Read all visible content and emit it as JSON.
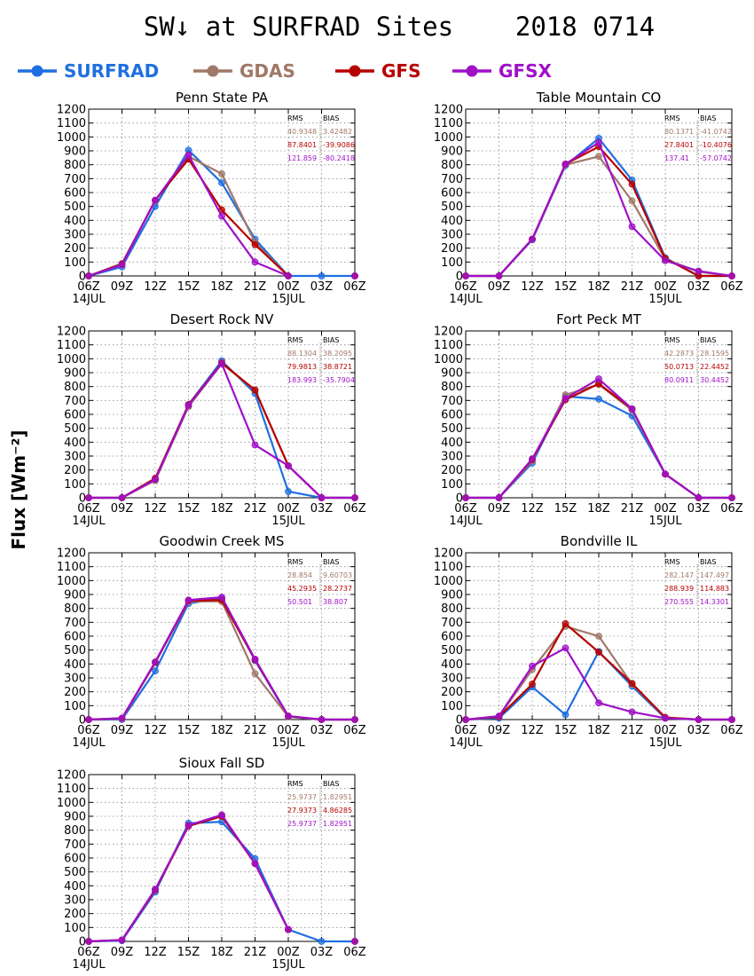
{
  "title": "SW↓ at SURFRAD Sites    2018 0714",
  "ylabel": "Flux [Wm⁻²]",
  "stats_headers": [
    "RMS",
    "BIAS"
  ],
  "x_ticks": [
    "06Z",
    "09Z",
    "12Z",
    "15Z",
    "18Z",
    "21Z",
    "00Z",
    "03Z",
    "06Z"
  ],
  "date_labels": [
    "14JUL",
    "15JUL"
  ],
  "legend": [
    {
      "name": "SURFRAD",
      "color": "#1f6fe0"
    },
    {
      "name": "GDAS",
      "color": "#a07868"
    },
    {
      "name": "GFS",
      "color": "#b80000"
    },
    {
      "name": "GFSX",
      "color": "#a010c8"
    }
  ],
  "chart_data": [
    {
      "type": "line",
      "title": "Penn State PA",
      "ylim": [
        0,
        1200
      ],
      "categories": [
        "06Z",
        "09Z",
        "12Z",
        "15Z",
        "18Z",
        "21Z",
        "00Z",
        "03Z",
        "06Z"
      ],
      "series": [
        {
          "name": "SURFRAD",
          "values": [
            0,
            65,
            500,
            905,
            670,
            265,
            0,
            0,
            0
          ]
        },
        {
          "name": "GDAS",
          "values": [
            0,
            90,
            540,
            860,
            735,
            240,
            0,
            null,
            0
          ]
        },
        {
          "name": "GFS",
          "values": [
            0,
            85,
            545,
            840,
            475,
            225,
            0,
            null,
            0
          ]
        },
        {
          "name": "GFSX",
          "values": [
            0,
            80,
            545,
            870,
            430,
            100,
            0,
            null,
            0
          ]
        }
      ],
      "stats": [
        {
          "rms": "40.9348",
          "bias": "3.42482"
        },
        {
          "rms": "87.8401",
          "bias": "-39.9086"
        },
        {
          "rms": "121.859",
          "bias": "-80.2418"
        }
      ]
    },
    {
      "type": "line",
      "title": "Table Mountain CO",
      "ylim": [
        0,
        1200
      ],
      "categories": [
        "06Z",
        "09Z",
        "12Z",
        "15Z",
        "18Z",
        "21Z",
        "00Z",
        "03Z",
        "06Z"
      ],
      "series": [
        {
          "name": "SURFRAD",
          "values": [
            0,
            0,
            260,
            795,
            990,
            690,
            130,
            0,
            0
          ]
        },
        {
          "name": "GDAS",
          "values": [
            0,
            0,
            265,
            800,
            860,
            540,
            120,
            30,
            0
          ]
        },
        {
          "name": "GFS",
          "values": [
            0,
            0,
            265,
            805,
            930,
            660,
            125,
            0,
            0
          ]
        },
        {
          "name": "GFSX",
          "values": [
            0,
            0,
            265,
            805,
            960,
            355,
            110,
            35,
            0
          ]
        }
      ],
      "stats": [
        {
          "rms": "80.1371",
          "bias": "-41.0742"
        },
        {
          "rms": "27.8401",
          "bias": "-10.4076"
        },
        {
          "rms": "137.41",
          "bias": "-57.0742"
        }
      ]
    },
    {
      "type": "line",
      "title": "Desert Rock NV",
      "ylim": [
        0,
        1200
      ],
      "categories": [
        "06Z",
        "09Z",
        "12Z",
        "15Z",
        "18Z",
        "21Z",
        "00Z",
        "03Z",
        "06Z"
      ],
      "series": [
        {
          "name": "SURFRAD",
          "values": [
            0,
            0,
            135,
            670,
            985,
            750,
            45,
            0,
            0
          ]
        },
        {
          "name": "GDAS",
          "values": [
            0,
            0,
            125,
            655,
            965,
            775,
            230,
            0,
            0
          ]
        },
        {
          "name": "GFS",
          "values": [
            0,
            0,
            140,
            670,
            970,
            775,
            230,
            0,
            0
          ]
        },
        {
          "name": "GFSX",
          "values": [
            0,
            0,
            130,
            665,
            965,
            380,
            230,
            0,
            0
          ]
        }
      ],
      "stats": [
        {
          "rms": "88.1304",
          "bias": "38.2095"
        },
        {
          "rms": "79.9813",
          "bias": "38.8721"
        },
        {
          "rms": "183.993",
          "bias": "-35.7904"
        }
      ]
    },
    {
      "type": "line",
      "title": "Fort Peck MT",
      "ylim": [
        0,
        1200
      ],
      "categories": [
        "06Z",
        "09Z",
        "12Z",
        "15Z",
        "18Z",
        "21Z",
        "00Z",
        "03Z",
        "06Z"
      ],
      "series": [
        {
          "name": "SURFRAD",
          "values": [
            0,
            0,
            250,
            730,
            710,
            590,
            170,
            0,
            0
          ]
        },
        {
          "name": "GDAS",
          "values": [
            0,
            0,
            265,
            740,
            815,
            630,
            170,
            0,
            0
          ]
        },
        {
          "name": "GFS",
          "values": [
            0,
            0,
            275,
            705,
            820,
            640,
            170,
            0,
            0
          ]
        },
        {
          "name": "GFSX",
          "values": [
            0,
            0,
            280,
            715,
            855,
            640,
            170,
            0,
            0
          ]
        }
      ],
      "stats": [
        {
          "rms": "42.2873",
          "bias": "28.1595"
        },
        {
          "rms": "50.0713",
          "bias": "22.4452"
        },
        {
          "rms": "80.0911",
          "bias": "30.4452"
        }
      ]
    },
    {
      "type": "line",
      "title": "Goodwin Creek MS",
      "ylim": [
        0,
        1200
      ],
      "categories": [
        "06Z",
        "09Z",
        "12Z",
        "15Z",
        "18Z",
        "21Z",
        "00Z",
        "03Z",
        "06Z"
      ],
      "series": [
        {
          "name": "SURFRAD",
          "values": [
            0,
            0,
            350,
            835,
            875,
            425,
            20,
            0,
            0
          ]
        },
        {
          "name": "GDAS",
          "values": [
            0,
            5,
            410,
            850,
            850,
            330,
            20,
            0,
            0
          ]
        },
        {
          "name": "GFS",
          "values": [
            0,
            10,
            410,
            855,
            860,
            430,
            25,
            0,
            0
          ]
        },
        {
          "name": "GFSX",
          "values": [
            0,
            10,
            415,
            860,
            880,
            435,
            25,
            0,
            0
          ]
        }
      ],
      "stats": [
        {
          "rms": "28.854",
          "bias": "9.60703"
        },
        {
          "rms": "45.2935",
          "bias": "28.2737"
        },
        {
          "rms": "50.501",
          "bias": "38.807"
        }
      ]
    },
    {
      "type": "line",
      "title": "Bondville IL",
      "ylim": [
        0,
        1200
      ],
      "categories": [
        "06Z",
        "09Z",
        "12Z",
        "15Z",
        "18Z",
        "21Z",
        "00Z",
        "03Z",
        "06Z"
      ],
      "series": [
        {
          "name": "SURFRAD",
          "values": [
            0,
            10,
            235,
            35,
            490,
            240,
            10,
            0,
            0
          ]
        },
        {
          "name": "GDAS",
          "values": [
            0,
            20,
            360,
            670,
            600,
            255,
            15,
            0,
            0
          ]
        },
        {
          "name": "GFS",
          "values": [
            0,
            20,
            255,
            690,
            485,
            260,
            15,
            0,
            0
          ]
        },
        {
          "name": "GFSX",
          "values": [
            0,
            25,
            385,
            515,
            120,
            55,
            10,
            0,
            0
          ]
        }
      ],
      "stats": [
        {
          "rms": "282.147",
          "bias": "147.497"
        },
        {
          "rms": "288.939",
          "bias": "114.883"
        },
        {
          "rms": "270.555",
          "bias": "14.3301"
        }
      ]
    },
    {
      "type": "line",
      "title": "Sioux Fall SD",
      "ylim": [
        0,
        1200
      ],
      "categories": [
        "06Z",
        "09Z",
        "12Z",
        "15Z",
        "18Z",
        "21Z",
        "00Z",
        "03Z",
        "06Z"
      ],
      "series": [
        {
          "name": "SURFRAD",
          "values": [
            0,
            5,
            355,
            850,
            860,
            595,
            85,
            0,
            0
          ]
        },
        {
          "name": "GDAS",
          "values": [
            0,
            10,
            370,
            830,
            900,
            560,
            85,
            null,
            0
          ]
        },
        {
          "name": "GFS",
          "values": [
            0,
            10,
            370,
            830,
            900,
            560,
            85,
            null,
            0
          ]
        },
        {
          "name": "GFSX",
          "values": [
            0,
            10,
            375,
            835,
            910,
            560,
            85,
            null,
            0
          ]
        }
      ],
      "stats": [
        {
          "rms": "25.9737",
          "bias": "1.82951"
        },
        {
          "rms": "27.9373",
          "bias": "4.86285"
        },
        {
          "rms": "25.9737",
          "bias": "1.82951"
        }
      ]
    }
  ]
}
